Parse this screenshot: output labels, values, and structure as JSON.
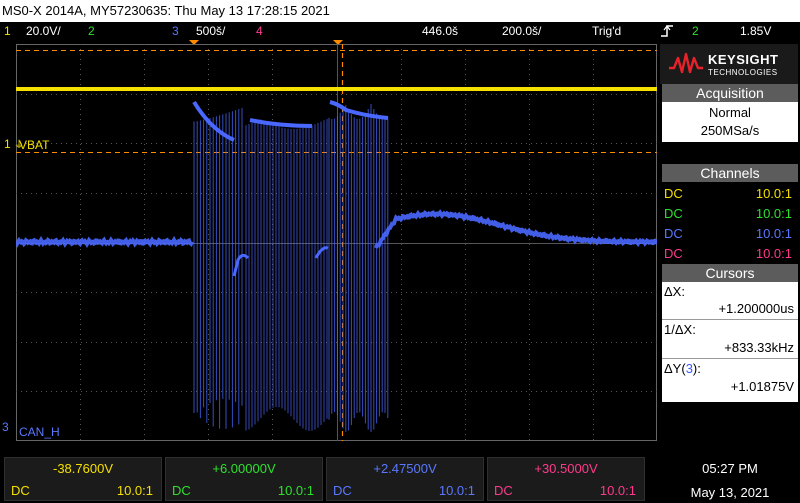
{
  "title_bar": {
    "text": "MS0-X 2014A, MY57230635: Thu May 13 17:28:15 2021"
  },
  "status_bar": {
    "ch1_num": "1",
    "ch1_scale": "20.0V/",
    "ch2_num": "2",
    "ch3_num": "3",
    "ch3_scale": "500š/",
    "ch4_num": "4",
    "time_delay": "446.0š",
    "time_scale": "200.0š/",
    "trigger_status": "Trig'd",
    "trigger_icon": "rising-edge-trigger-icon",
    "trigger_source": "2",
    "trigger_level": "1.85V"
  },
  "waveform": {
    "labels": {
      "ch1_marker": "1",
      "ch1_label": "VBAT",
      "ch3_marker": "3",
      "ch3_label": "CAN_H"
    },
    "colors": {
      "ch1": "#f5e000",
      "ch3": "#4a68ff",
      "grid": "#555555",
      "cursor": "#ff8a00"
    }
  },
  "right_panel": {
    "logo": {
      "brand": "KEYSIGHT",
      "sub": "TECHNOLOGIES",
      "icon": "keysight-wave-logo-icon"
    },
    "acquisition": {
      "header": "Acquisition",
      "mode": "Normal",
      "rate": "250MSa/s"
    },
    "channels": {
      "header": "Channels",
      "rows": [
        {
          "coupling": "DC",
          "probe": "10.0:1",
          "color": "#f5e000"
        },
        {
          "coupling": "DC",
          "probe": "10.0:1",
          "color": "#2ee02e"
        },
        {
          "coupling": "DC",
          "probe": "10.0:1",
          "color": "#5a78ff"
        },
        {
          "coupling": "DC",
          "probe": "10.0:1",
          "color": "#ff3a8c"
        }
      ]
    },
    "cursors": {
      "header": "Cursors",
      "dx_label": "ΔX:",
      "dx_value": "+1.200000us",
      "inv_dx_label": "1/ΔX:",
      "inv_dx_value": "+833.33kHz",
      "dy_label_prefix": "ΔY(",
      "dy_channel": "3",
      "dy_label_suffix": "):",
      "dy_value": "+1.01875V"
    }
  },
  "bottom_bar": {
    "measurements": [
      {
        "value": "-38.7600V",
        "coupling": "DC",
        "probe": "10.0:1",
        "color": "#f5e000"
      },
      {
        "value": "+6.00000V",
        "coupling": "DC",
        "probe": "10.0:1",
        "color": "#2ee02e"
      },
      {
        "value": "+2.47500V",
        "coupling": "DC",
        "probe": "10.0:1",
        "color": "#5a78ff"
      },
      {
        "value": "+30.5000V",
        "coupling": "DC",
        "probe": "10.0:1",
        "color": "#ff3a8c"
      }
    ],
    "time": "05:27 PM",
    "date": "May 13, 2021"
  }
}
